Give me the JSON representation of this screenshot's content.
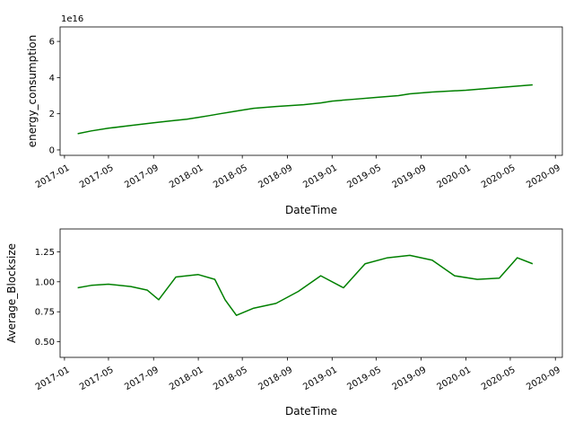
{
  "chart_data": [
    {
      "type": "line",
      "xlabel": "DateTime",
      "ylabel": "energy_consumption",
      "offset_text": "1e16",
      "color": "#008000",
      "xlim": [
        "2016-12-20",
        "2020-09-20"
      ],
      "ylim": [
        -0.3,
        6.8
      ],
      "y_scale_factor": "1e16",
      "yticks": [
        0,
        2,
        4,
        6
      ],
      "ytick_labels": [
        "0",
        "2",
        "4",
        "6"
      ],
      "xticks": [
        "2017-01-01",
        "2017-05-01",
        "2017-09-01",
        "2018-01-01",
        "2018-05-01",
        "2018-09-01",
        "2019-01-01",
        "2019-05-01",
        "2019-09-01",
        "2020-01-01",
        "2020-05-01",
        "2020-09-01"
      ],
      "xtick_labels": [
        "2017-01",
        "2017-05",
        "2017-09",
        "2018-01",
        "2018-05",
        "2018-09",
        "2019-01",
        "2019-05",
        "2019-09",
        "2020-01",
        "2020-05",
        "2020-09"
      ],
      "series": [
        {
          "x": [
            "2017-02-06",
            "2017-03-15",
            "2017-05-01",
            "2017-07-01",
            "2017-09-01",
            "2017-10-15",
            "2017-12-01",
            "2018-01-01",
            "2018-02-01",
            "2018-03-01",
            "2018-04-01",
            "2018-05-01",
            "2018-06-01",
            "2018-08-01",
            "2018-10-15",
            "2018-12-01",
            "2019-01-01",
            "2019-03-01",
            "2019-05-01",
            "2019-07-01",
            "2019-08-01",
            "2019-10-01",
            "2020-01-01",
            "2020-03-01",
            "2020-05-01",
            "2020-07-01"
          ],
          "values": [
            0.9,
            1.05,
            1.2,
            1.35,
            1.5,
            1.6,
            1.7,
            1.8,
            1.9,
            2.0,
            2.1,
            2.2,
            2.3,
            2.4,
            2.5,
            2.6,
            2.7,
            2.8,
            2.9,
            3.0,
            3.1,
            3.2,
            3.3,
            3.4,
            3.5,
            3.6
          ]
        }
      ]
    },
    {
      "type": "line",
      "xlabel": "DateTime",
      "ylabel": "Average_Blocksize",
      "color": "#008000",
      "xlim": [
        "2016-12-20",
        "2020-09-20"
      ],
      "ylim": [
        0.37,
        1.44
      ],
      "yticks": [
        0.5,
        0.75,
        1.0,
        1.25
      ],
      "ytick_labels": [
        "0.50",
        "0.75",
        "1.00",
        "1.25"
      ],
      "xticks": [
        "2017-01-01",
        "2017-05-01",
        "2017-09-01",
        "2018-01-01",
        "2018-05-01",
        "2018-09-01",
        "2019-01-01",
        "2019-05-01",
        "2019-09-01",
        "2020-01-01",
        "2020-05-01",
        "2020-09-01"
      ],
      "xtick_labels": [
        "2017-01",
        "2017-05",
        "2017-09",
        "2018-01",
        "2018-05",
        "2018-09",
        "2019-01",
        "2019-05",
        "2019-09",
        "2020-01",
        "2020-05",
        "2020-09"
      ],
      "series": [
        {
          "x": [
            "2017-02-06",
            "2017-03-15",
            "2017-05-01",
            "2017-07-01",
            "2017-08-15",
            "2017-09-15",
            "2017-11-01",
            "2018-01-01",
            "2018-02-15",
            "2018-03-15",
            "2018-04-15",
            "2018-06-01",
            "2018-08-01",
            "2018-10-01",
            "2018-12-01",
            "2019-02-01",
            "2019-04-01",
            "2019-06-01",
            "2019-08-01",
            "2019-10-01",
            "2019-12-01",
            "2020-02-01",
            "2020-04-01",
            "2020-05-20",
            "2020-07-01"
          ],
          "values": [
            0.95,
            0.97,
            0.98,
            0.96,
            0.93,
            0.85,
            1.04,
            1.06,
            1.02,
            0.85,
            0.72,
            0.78,
            0.82,
            0.92,
            1.05,
            0.95,
            1.15,
            1.2,
            1.22,
            1.18,
            1.05,
            1.02,
            1.03,
            1.2,
            1.15
          ]
        }
      ]
    }
  ]
}
